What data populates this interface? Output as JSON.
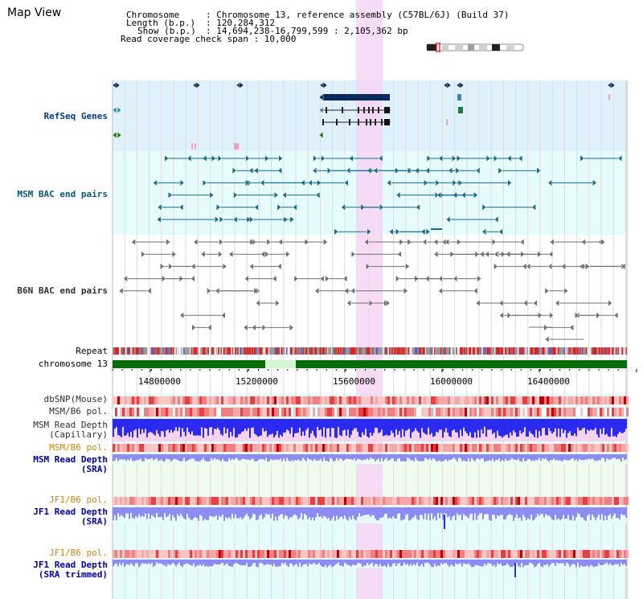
{
  "app": {
    "title": "Map View"
  },
  "info": {
    "chromosome_key": "Chromosome",
    "chromosome_val": ": Chromosome 13, reference assembly (C57BL/6J) (Build 37)",
    "length_key": "Length (b.p.)",
    "length_val": ": 120,284,312",
    "show_key": "Show (b.p.)",
    "show_val": ": 14,694,238-16,799,599 : 2,105,362 bp",
    "coverage_text": "Read coverage check span : 10,000"
  },
  "tracks": {
    "refseq": "RefSeq Genes",
    "msm_bac": "MSM BAC end pairs",
    "b6n_bac": "B6N BAC end pairs",
    "repeat": "Repeat",
    "chromosome": "chromosome 13",
    "dbsnp": "dbSNP(Mouse)",
    "msm_b6_pol_1": "MSM/B6 pol.",
    "msm_read_depth_cap_1": "MSM Read Depth",
    "msm_read_depth_cap_2": "(Capillary)",
    "msm_b6_pol_2": "MSM/B6 pol.",
    "msm_read_depth_sra_1": "MSM Read Depth",
    "msm_read_depth_sra_2": "(SRA)",
    "jf1_b6_pol_1": "JF1/B6 pol.",
    "jf1_read_depth_sra_1": "JF1 Read Depth",
    "jf1_read_depth_sra_2": "(SRA)",
    "jf1_b6_pol_2": "JF1/B6 pol.",
    "jf1_read_depth_trim_1": "JF1 Read Depth",
    "jf1_read_depth_trim_2": "(SRA trimmed)"
  },
  "axis": {
    "ticks": [
      "14800000",
      "15200000",
      "15600000",
      "16000000",
      "16400000"
    ]
  },
  "colors": {
    "refseq_dark": "#0a2a5a",
    "msm_line": "#1a6a8a",
    "b6n_line": "#707070",
    "repeat_red": "#e02020",
    "chrom_green": "#086c08",
    "depth_blue": "#2a2af0",
    "depth_light": "#8c8cf4",
    "highlight": "#f6d6f4"
  },
  "icons": [
    "chromosome-ideogram-icon"
  ]
}
